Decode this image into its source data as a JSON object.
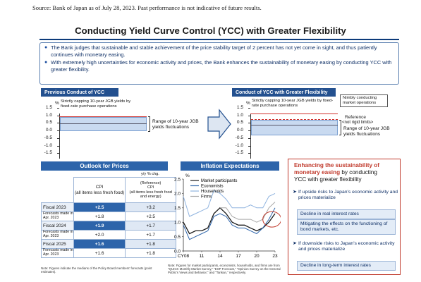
{
  "source": "Source: Bank of Japan as of July 28, 2023. Past performance is not indicative of future results.",
  "title": "Conducting Yield Curve Control (YCC) with Greater Flexibility",
  "intro": [
    "The Bank judges that sustainable and stable achievement of the price stability target of 2 percent has not yet come in sight, and thus patiently continues with monetary easing.",
    "With extremely high uncertainties for economic activity and prices, the Bank enhances the sustainability of monetary easing by conducting YCC with greater flexibility."
  ],
  "prev": {
    "header": "Previous Conduct of YCC",
    "unit": "%",
    "yticks": [
      "1.5",
      "1.0",
      "0.5",
      "0.0",
      "-0.5",
      "-1.0",
      "-1.5"
    ],
    "cap_note": "Strictly capping 10-year JGB yields by fixed-rate purchase operations",
    "range_note": "Range of 10-year JGB yields fluctuations"
  },
  "next": {
    "header": "Conduct of YCC with Greater Flexibility",
    "unit": "%",
    "yticks": [
      "1.5",
      "1.0",
      "0.5",
      "0.0",
      "-0.5",
      "-1.0",
      "-1.5"
    ],
    "cap_note": "Strictly capping 10-year JGB yields by fixed-rate purchase operations",
    "nimbly_note": "Nimbly conducting market operations",
    "reference_note": "Reference",
    "reference_sub": "<not rigid limits>",
    "range_note": "Range of 10-year JGB yields fluctuations"
  },
  "outlook": {
    "header": "Outlook for Prices",
    "unit": "y/y % chg.",
    "col_cpi": "CPI",
    "col_cpi_sub": "(all items less fresh food)",
    "col_ref": "(Reference)",
    "col_ref2": "CPI",
    "col_ref_sub": "(all items less fresh food and energy)",
    "rows": [
      {
        "label": "Fiscal 2023",
        "cpi": "+2.5",
        "ref": "+3.2",
        "hl": true
      },
      {
        "label": "Forecasts made in Apr. 2023",
        "cpi": "+1.8",
        "ref": "+2.5",
        "hl": false
      },
      {
        "label": "Fiscal 2024",
        "cpi": "+1.9",
        "ref": "+1.7",
        "hl": true
      },
      {
        "label": "Forecasts made in Apr. 2023",
        "cpi": "+2.0",
        "ref": "+1.7",
        "hl": false
      },
      {
        "label": "Fiscal 2025",
        "cpi": "+1.6",
        "ref": "+1.8",
        "hl": true
      },
      {
        "label": "Forecasts made in Apr. 2023",
        "cpi": "+1.6",
        "ref": "+1.8",
        "hl": false
      }
    ],
    "note": "Note: Figures indicate the medians of the Policy Board members' forecasts (point estimates)."
  },
  "chart_data": {
    "type": "line",
    "title": "Inflation Expectations",
    "ylabel": "%",
    "ylim": [
      0.0,
      2.5
    ],
    "yticks": [
      "2.5",
      "2.0",
      "1.5",
      "1.0",
      "0.5",
      "0.0"
    ],
    "x_ticks": [
      "CY08",
      "11",
      "14",
      "17",
      "20",
      "23"
    ],
    "x": [
      2008,
      2009,
      2010,
      2011,
      2012,
      2013,
      2014,
      2015,
      2016,
      2017,
      2018,
      2019,
      2020,
      2021,
      2022,
      2023
    ],
    "series": [
      {
        "name": "Market participants",
        "color": "#1a1a1a",
        "values": [
          1.0,
          0.6,
          0.7,
          0.7,
          0.8,
          1.3,
          1.5,
          1.3,
          1.0,
          0.9,
          0.9,
          0.8,
          0.7,
          0.8,
          1.0,
          1.3
        ]
      },
      {
        "name": "Economists",
        "color": "#2d64aa",
        "values": [
          0.9,
          0.4,
          0.5,
          0.6,
          0.7,
          1.2,
          1.3,
          1.2,
          0.9,
          0.8,
          0.8,
          0.7,
          0.6,
          0.8,
          1.1,
          1.5
        ]
      },
      {
        "name": "Households",
        "color": "#8fb3df",
        "values": [
          1.9,
          1.2,
          1.3,
          1.4,
          1.5,
          2.1,
          2.0,
          1.8,
          1.5,
          1.5,
          1.5,
          1.6,
          1.5,
          1.5,
          1.9,
          2.0
        ]
      },
      {
        "name": "Firms",
        "color": "#a9a9a9",
        "values": [
          null,
          null,
          null,
          null,
          null,
          null,
          1.5,
          1.5,
          1.2,
          1.1,
          1.1,
          1.1,
          1.0,
          1.1,
          1.5,
          1.7
        ]
      }
    ],
    "note": "Note: Figures for market participants, economists, households, and firms are from \"QUICK Monthly Market Survey,\" \"ESP Forecast,\" \"Opinion Survey on the General Public's Views and Behavior,\" and \"Tankan,\" respectively."
  },
  "right": {
    "enh1": "Enhancing the sustainability of",
    "enh2": "monetary easing",
    "enh3": " by conducting",
    "enh4": "YCC with greater flexibility",
    "upside": "If upside risks to Japan's economic activity and prices materialize",
    "box1": "Decline in real interest rates",
    "box2": "Mitigating the effects on the functioning of bond markets, etc.",
    "downside": "If downside risks to Japan's economic activity and prices materialize",
    "box3": "Decline in long-term interest rates"
  }
}
